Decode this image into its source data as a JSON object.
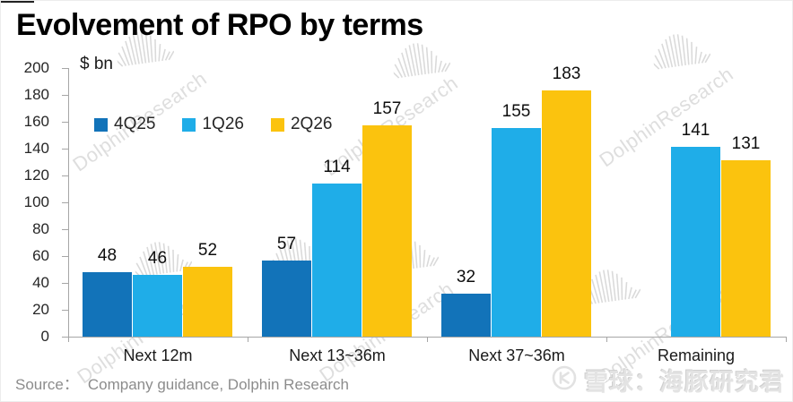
{
  "page": {
    "title": "Evolvement of RPO by terms",
    "source_label": "Source：",
    "source_text": "Company guidance, Dolphin Research",
    "watermark_text": "DolphinResearch",
    "xueqiu_watermark_text": "雪球：海豚研究君"
  },
  "chart_data": {
    "type": "bar",
    "title": "Evolvement of RPO by terms",
    "unit_label": "$ bn",
    "categories": [
      "Next 12m",
      "Next 13~36m",
      "Next 37~36m",
      "Remaining"
    ],
    "series": [
      {
        "name": "4Q25",
        "color": "#1273B9",
        "values": [
          48,
          57,
          32,
          null
        ]
      },
      {
        "name": "1Q26",
        "color": "#1FADE8",
        "values": [
          46,
          114,
          155,
          141
        ]
      },
      {
        "name": "2Q26",
        "color": "#FBC30E",
        "values": [
          52,
          157,
          183,
          131
        ]
      }
    ],
    "ylim": [
      0,
      200
    ],
    "ytick_step": 20,
    "yticks": [
      0,
      20,
      40,
      60,
      80,
      100,
      120,
      140,
      160,
      180,
      200
    ],
    "grid": false,
    "legend_position": "inside-top-left",
    "axis_color": "#A6A6A6"
  }
}
